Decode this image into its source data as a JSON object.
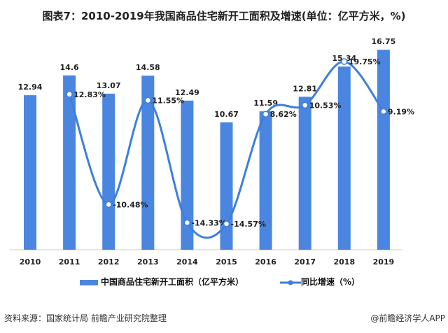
{
  "title": "图表7：2010-2019年我国商品住宅新开工面积及增速(单位：亿平方米，%)",
  "source": "资料来源：国家统计局 前瞻产业研究院整理",
  "credit": "@前瞻经济学人APP",
  "watermark": "前瞻产业研究院",
  "colors": {
    "bar": "#4a86e0",
    "line": "#3d7fdc"
  },
  "chart_data": {
    "type": "bar+line",
    "categories": [
      "2010",
      "2011",
      "2012",
      "2013",
      "2014",
      "2015",
      "2016",
      "2017",
      "2018",
      "2019"
    ],
    "series": [
      {
        "name": "中国商品住宅新开工面积（亿平方米）",
        "type": "bar",
        "values": [
          12.94,
          14.6,
          13.07,
          14.58,
          12.49,
          10.67,
          11.59,
          12.81,
          15.34,
          16.75
        ],
        "labels": [
          "12.94",
          "14.6",
          "13.07",
          "14.58",
          "12.49",
          "10.67",
          "11.59",
          "12.81",
          "15.34",
          "16.75"
        ]
      },
      {
        "name": "同比增速（%）",
        "type": "line",
        "values": [
          null,
          12.83,
          -10.48,
          11.55,
          -14.33,
          -14.57,
          8.62,
          10.53,
          19.75,
          9.19
        ],
        "labels": [
          "",
          "12.83%",
          "-10.48%",
          "11.55%",
          "-14.33%",
          "-14.57%",
          "8.62%",
          "10.53%",
          "19.75%",
          "9.19%"
        ]
      }
    ],
    "legend": [
      "中国商品住宅新开工面积（亿平方米）",
      "同比增速（%）"
    ],
    "legend_position": "bottom",
    "grid": false
  }
}
